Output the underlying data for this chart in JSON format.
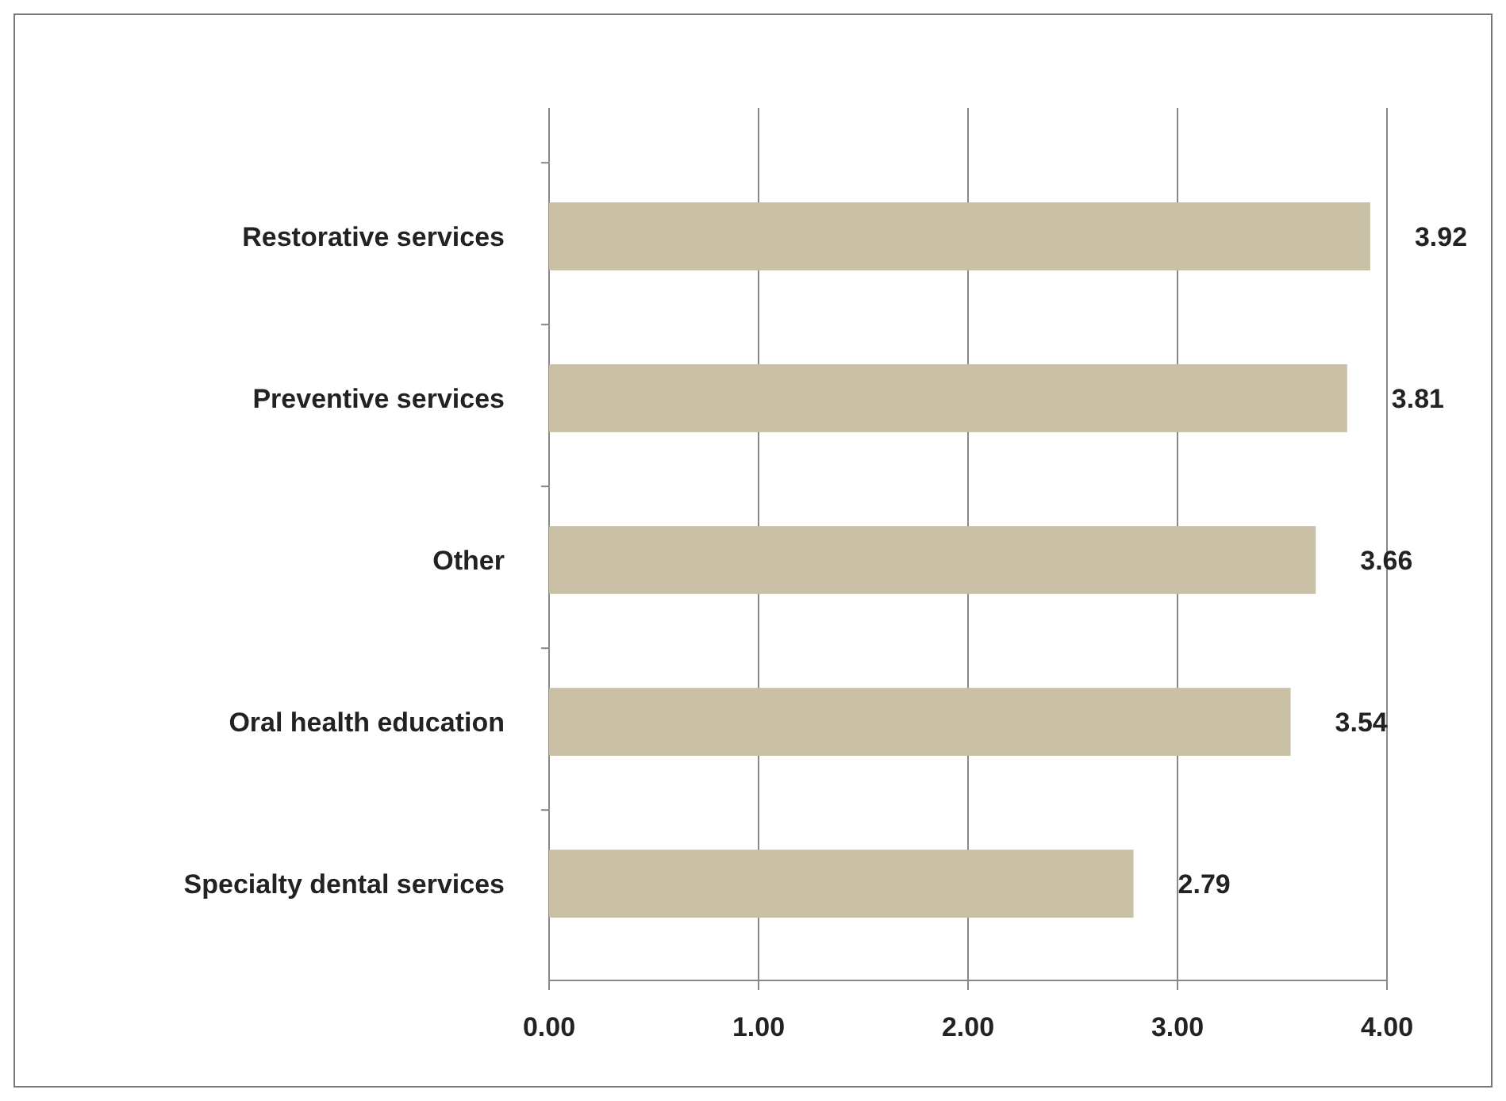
{
  "chart_data": {
    "type": "bar",
    "orientation": "horizontal",
    "categories": [
      "Restorative services",
      "Preventive services",
      "Other",
      "Oral health education",
      "Specialty dental services"
    ],
    "values": [
      3.92,
      3.81,
      3.66,
      3.54,
      2.79
    ],
    "color": "#c9c0a6",
    "xlim": [
      0,
      4
    ],
    "xticks": [
      {
        "value": 0,
        "label": "0.00"
      },
      {
        "value": 1,
        "label": "1.00"
      },
      {
        "value": 2,
        "label": "2.00"
      },
      {
        "value": 3,
        "label": "3.00"
      },
      {
        "value": 4,
        "label": "4.00"
      }
    ],
    "grid": "x",
    "data_labels": true
  }
}
